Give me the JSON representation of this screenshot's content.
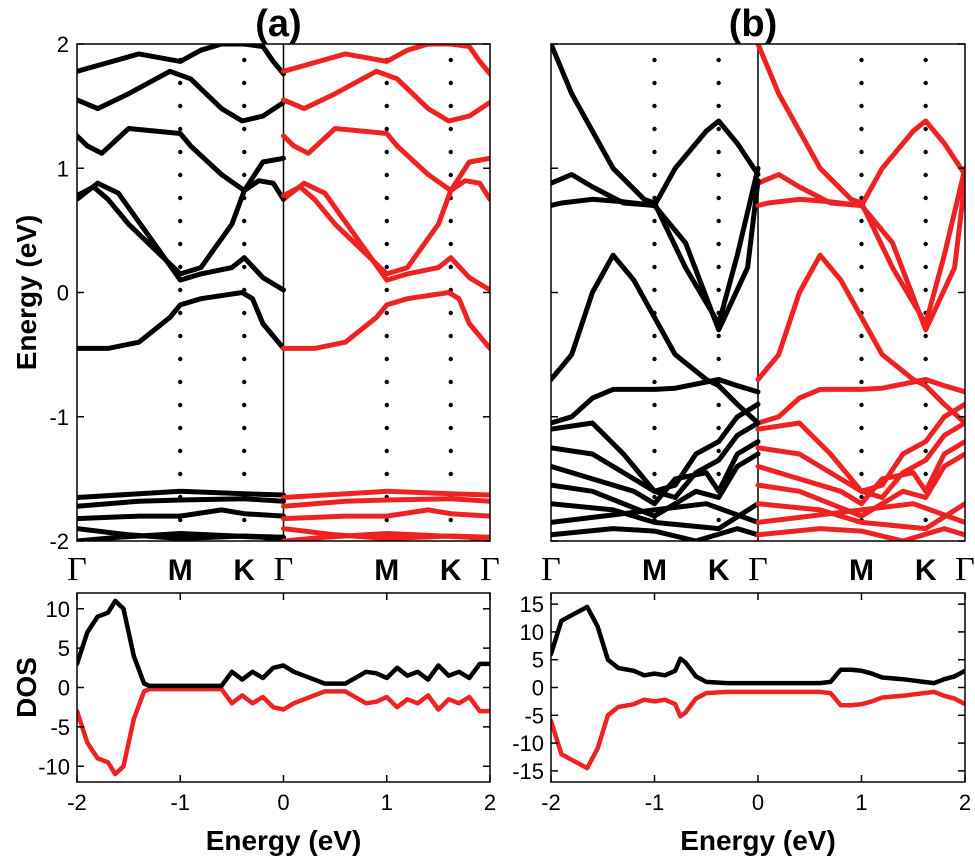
{
  "colors": {
    "spin_up": "#000000",
    "spin_down": "#ee2222",
    "dots": "#000000"
  },
  "chart_data": [
    {
      "type": "line",
      "panel_label": "(a)",
      "ylabel": "Energy (eV)",
      "ylim": [
        -2,
        2
      ],
      "yticks": [
        "2",
        "1",
        "0",
        "-1",
        "-2"
      ],
      "kpoints": [
        "Γ",
        "M",
        "K",
        "Γ",
        "M",
        "K",
        "Γ"
      ],
      "kpos": [
        0,
        0.5,
        0.81,
        1,
        1.5,
        1.81,
        2
      ],
      "series": [
        {
          "x": [
            0,
            0.15,
            0.3,
            0.5,
            0.6,
            0.7,
            0.81,
            0.9,
            0.95,
            1
          ],
          "y": [
            1.78,
            1.85,
            1.92,
            1.86,
            1.95,
            2.0,
            2.0,
            1.98,
            1.86,
            1.76
          ]
        },
        {
          "x": [
            0,
            0.1,
            0.25,
            0.45,
            0.55,
            0.7,
            0.8,
            0.9,
            1
          ],
          "y": [
            1.55,
            1.48,
            1.6,
            1.78,
            1.72,
            1.48,
            1.38,
            1.42,
            1.53
          ]
        },
        {
          "x": [
            0,
            0.05,
            0.12,
            0.25,
            0.5,
            0.55,
            0.7,
            0.81,
            0.9,
            1
          ],
          "y": [
            1.26,
            1.18,
            1.12,
            1.32,
            1.28,
            1.18,
            0.95,
            0.82,
            1.05,
            1.08
          ]
        },
        {
          "x": [
            0,
            0.1,
            0.2,
            0.35,
            0.5,
            0.6,
            0.75,
            0.81,
            0.9,
            1
          ],
          "y": [
            0.75,
            0.88,
            0.8,
            0.45,
            0.1,
            0.15,
            0.2,
            0.28,
            0.12,
            0.02
          ]
        },
        {
          "x": [
            0,
            0.08,
            0.15,
            0.25,
            0.5,
            0.6,
            0.75,
            0.81,
            0.88,
            0.95,
            1
          ],
          "y": [
            0.78,
            0.85,
            0.75,
            0.55,
            0.15,
            0.2,
            0.55,
            0.82,
            0.9,
            0.88,
            0.75
          ]
        },
        {
          "x": [
            0,
            0.15,
            0.3,
            0.45,
            0.5,
            0.6,
            0.8,
            0.85,
            0.9,
            1
          ],
          "y": [
            -0.45,
            -0.45,
            -0.4,
            -0.2,
            -0.1,
            -0.05,
            0.0,
            -0.05,
            -0.25,
            -0.45
          ]
        },
        {
          "x": [
            0,
            0.5,
            0.81,
            1
          ],
          "y": [
            -1.65,
            -1.6,
            -1.62,
            -1.63
          ]
        },
        {
          "x": [
            0,
            0.3,
            0.5,
            0.81,
            1
          ],
          "y": [
            -1.72,
            -1.68,
            -1.67,
            -1.66,
            -1.68
          ]
        },
        {
          "x": [
            0,
            0.3,
            0.5,
            0.7,
            0.81,
            1
          ],
          "y": [
            -1.82,
            -1.8,
            -1.8,
            -1.75,
            -1.78,
            -1.8
          ]
        },
        {
          "x": [
            0,
            0.25,
            0.5,
            0.81,
            1
          ],
          "y": [
            -1.9,
            -1.95,
            -1.98,
            -1.96,
            -1.97
          ]
        },
        {
          "x": [
            0,
            0.2,
            0.5,
            0.9,
            1
          ],
          "y": [
            -2.0,
            -1.97,
            -1.94,
            -1.97,
            -2.0
          ]
        }
      ],
      "dos": {
        "ylim": [
          -12,
          12
        ],
        "yticks": [
          "10",
          "5",
          "0",
          "-5",
          "-10"
        ],
        "xlim": [
          -2,
          2
        ],
        "xticks": [
          "-2",
          "-1",
          "0",
          "1",
          "2"
        ],
        "xlabel": "Energy (eV)",
        "ylabel": "DOS",
        "up": {
          "x": [
            -2,
            -1.9,
            -1.8,
            -1.7,
            -1.63,
            -1.55,
            -1.45,
            -1.35,
            -1.3,
            -0.6,
            -0.5,
            -0.4,
            -0.3,
            -0.2,
            -0.1,
            0,
            0.1,
            0.2,
            0.4,
            0.6,
            0.8,
            0.9,
            1.0,
            1.1,
            1.2,
            1.3,
            1.4,
            1.5,
            1.6,
            1.7,
            1.8,
            1.9,
            2.0
          ],
          "y": [
            3,
            7,
            9,
            9.5,
            11,
            10,
            4,
            0.5,
            0.2,
            0.2,
            2,
            1,
            2,
            1.2,
            2.5,
            2.8,
            2,
            1.5,
            0.5,
            0.5,
            2,
            1.8,
            1.2,
            2.5,
            1.5,
            2,
            1,
            2.8,
            1.5,
            2,
            1.2,
            3,
            3
          ]
        },
        "down": {
          "x": [
            -2,
            -1.9,
            -1.8,
            -1.7,
            -1.63,
            -1.55,
            -1.45,
            -1.35,
            -1.3,
            -0.6,
            -0.5,
            -0.4,
            -0.3,
            -0.2,
            -0.1,
            0,
            0.1,
            0.2,
            0.4,
            0.6,
            0.8,
            0.9,
            1.0,
            1.1,
            1.2,
            1.3,
            1.4,
            1.5,
            1.6,
            1.7,
            1.8,
            1.9,
            2.0
          ],
          "y": [
            -3,
            -7,
            -9,
            -9.5,
            -11,
            -10,
            -4,
            -0.5,
            -0.2,
            -0.2,
            -2,
            -1,
            -2,
            -1.2,
            -2.5,
            -2.8,
            -2,
            -1.5,
            -0.5,
            -0.5,
            -2,
            -1.8,
            -1.2,
            -2.5,
            -1.5,
            -2,
            -1,
            -2.8,
            -1.5,
            -2,
            -1.2,
            -3,
            -3
          ]
        }
      }
    },
    {
      "type": "line",
      "panel_label": "(b)",
      "ylabel": "",
      "ylim": [
        -2,
        2
      ],
      "yticks": [],
      "kpoints": [
        "Γ",
        "M",
        "K",
        "Γ",
        "M",
        "K",
        "Γ"
      ],
      "kpos": [
        0,
        0.5,
        0.81,
        1,
        1.5,
        1.81,
        2
      ],
      "series": [
        {
          "x": [
            0,
            0.1,
            0.3,
            0.45,
            0.5,
            0.65,
            0.81,
            0.9,
            1
          ],
          "y": [
            2.0,
            1.6,
            1.0,
            0.75,
            0.72,
            0.2,
            -0.25,
            0.3,
            1.0
          ]
        },
        {
          "x": [
            0,
            0.1,
            0.2,
            0.35,
            0.5,
            0.6,
            0.75,
            0.81,
            0.9,
            1
          ],
          "y": [
            0.88,
            0.95,
            0.85,
            0.72,
            0.7,
            1.0,
            1.3,
            1.38,
            1.2,
            0.95
          ]
        },
        {
          "x": [
            0,
            0.05,
            0.2,
            0.35,
            0.5,
            0.65,
            0.81,
            0.95,
            1
          ],
          "y": [
            0.7,
            0.72,
            0.75,
            0.73,
            0.7,
            0.4,
            -0.3,
            0.2,
            0.9
          ]
        },
        {
          "x": [
            0,
            0.1,
            0.2,
            0.3,
            0.4,
            0.5,
            0.6,
            0.75,
            0.81,
            0.9,
            1
          ],
          "y": [
            -0.7,
            -0.5,
            0.0,
            0.3,
            0.1,
            -0.2,
            -0.5,
            -0.7,
            -0.75,
            -0.9,
            -1.05
          ]
        },
        {
          "x": [
            0,
            0.1,
            0.2,
            0.3,
            0.5,
            0.6,
            0.75,
            0.81,
            0.9,
            1
          ],
          "y": [
            -1.05,
            -1.0,
            -0.85,
            -0.78,
            -0.78,
            -0.77,
            -0.72,
            -0.7,
            -0.75,
            -0.8
          ]
        },
        {
          "x": [
            0,
            0.2,
            0.35,
            0.5,
            0.6,
            0.7,
            0.81,
            0.9,
            1
          ],
          "y": [
            -1.1,
            -1.05,
            -1.3,
            -1.6,
            -1.55,
            -1.3,
            -1.2,
            -1.0,
            -0.9
          ]
        },
        {
          "x": [
            0,
            0.2,
            0.4,
            0.5,
            0.6,
            0.7,
            0.81,
            0.9,
            1
          ],
          "y": [
            -1.25,
            -1.3,
            -1.5,
            -1.6,
            -1.65,
            -1.45,
            -1.35,
            -1.15,
            -1.05
          ]
        },
        {
          "x": [
            0,
            0.2,
            0.4,
            0.5,
            0.6,
            0.75,
            0.81,
            0.9,
            1
          ],
          "y": [
            -1.4,
            -1.5,
            -1.6,
            -1.7,
            -1.5,
            -1.45,
            -1.6,
            -1.3,
            -1.2
          ]
        },
        {
          "x": [
            0,
            0.2,
            0.5,
            0.7,
            0.81,
            0.9,
            1
          ],
          "y": [
            -1.55,
            -1.6,
            -1.8,
            -1.6,
            -1.65,
            -1.4,
            -1.3
          ]
        },
        {
          "x": [
            0,
            0.3,
            0.5,
            0.81,
            1
          ],
          "y": [
            -1.7,
            -1.75,
            -1.85,
            -1.9,
            -1.7
          ]
        },
        {
          "x": [
            0,
            0.25,
            0.5,
            0.75,
            1
          ],
          "y": [
            -1.85,
            -1.8,
            -1.75,
            -1.7,
            -1.85
          ]
        },
        {
          "x": [
            0,
            0.3,
            0.5,
            0.7,
            0.9,
            1
          ],
          "y": [
            -1.95,
            -1.9,
            -1.92,
            -2.0,
            -1.9,
            -1.95
          ]
        }
      ],
      "dos": {
        "ylim": [
          -17,
          17
        ],
        "yticks": [
          "15",
          "10",
          "5",
          "0",
          "-5",
          "-10",
          "-15"
        ],
        "xlim": [
          -2,
          2
        ],
        "xticks": [
          "-2",
          "-1",
          "0",
          "1",
          "2"
        ],
        "xlabel": "Energy (eV)",
        "ylabel": "",
        "up": {
          "x": [
            -2,
            -1.9,
            -1.8,
            -1.7,
            -1.65,
            -1.55,
            -1.45,
            -1.35,
            -1.2,
            -1.1,
            -1.0,
            -0.9,
            -0.8,
            -0.75,
            -0.7,
            -0.6,
            -0.5,
            -0.3,
            0,
            0.3,
            0.6,
            0.7,
            0.8,
            0.9,
            1.0,
            1.1,
            1.2,
            1.4,
            1.6,
            1.7,
            1.8,
            1.9,
            2.0
          ],
          "y": [
            6,
            12,
            13,
            14,
            14.5,
            11,
            5,
            3.5,
            3,
            2.2,
            2.5,
            2.2,
            3,
            5.2,
            4.5,
            2,
            1,
            0.8,
            0.8,
            0.8,
            0.8,
            1,
            3.2,
            3.2,
            3,
            2.5,
            1.8,
            1.5,
            1,
            0.8,
            1.5,
            2,
            3
          ]
        },
        "down": {
          "x": [
            -2,
            -1.9,
            -1.8,
            -1.7,
            -1.65,
            -1.55,
            -1.45,
            -1.35,
            -1.2,
            -1.1,
            -1.0,
            -0.9,
            -0.8,
            -0.75,
            -0.7,
            -0.6,
            -0.5,
            -0.3,
            0,
            0.3,
            0.6,
            0.7,
            0.8,
            0.9,
            1.0,
            1.1,
            1.2,
            1.4,
            1.6,
            1.7,
            1.8,
            1.9,
            2.0
          ],
          "y": [
            -6,
            -12,
            -13,
            -14,
            -14.5,
            -11,
            -5,
            -3.5,
            -3,
            -2.2,
            -2.5,
            -2.2,
            -3,
            -5.2,
            -4.5,
            -2,
            -1,
            -0.8,
            -0.8,
            -0.8,
            -0.8,
            -1,
            -3.2,
            -3.2,
            -3,
            -2.5,
            -1.8,
            -1.5,
            -1,
            -0.8,
            -1.5,
            -2,
            -3
          ]
        }
      }
    }
  ]
}
